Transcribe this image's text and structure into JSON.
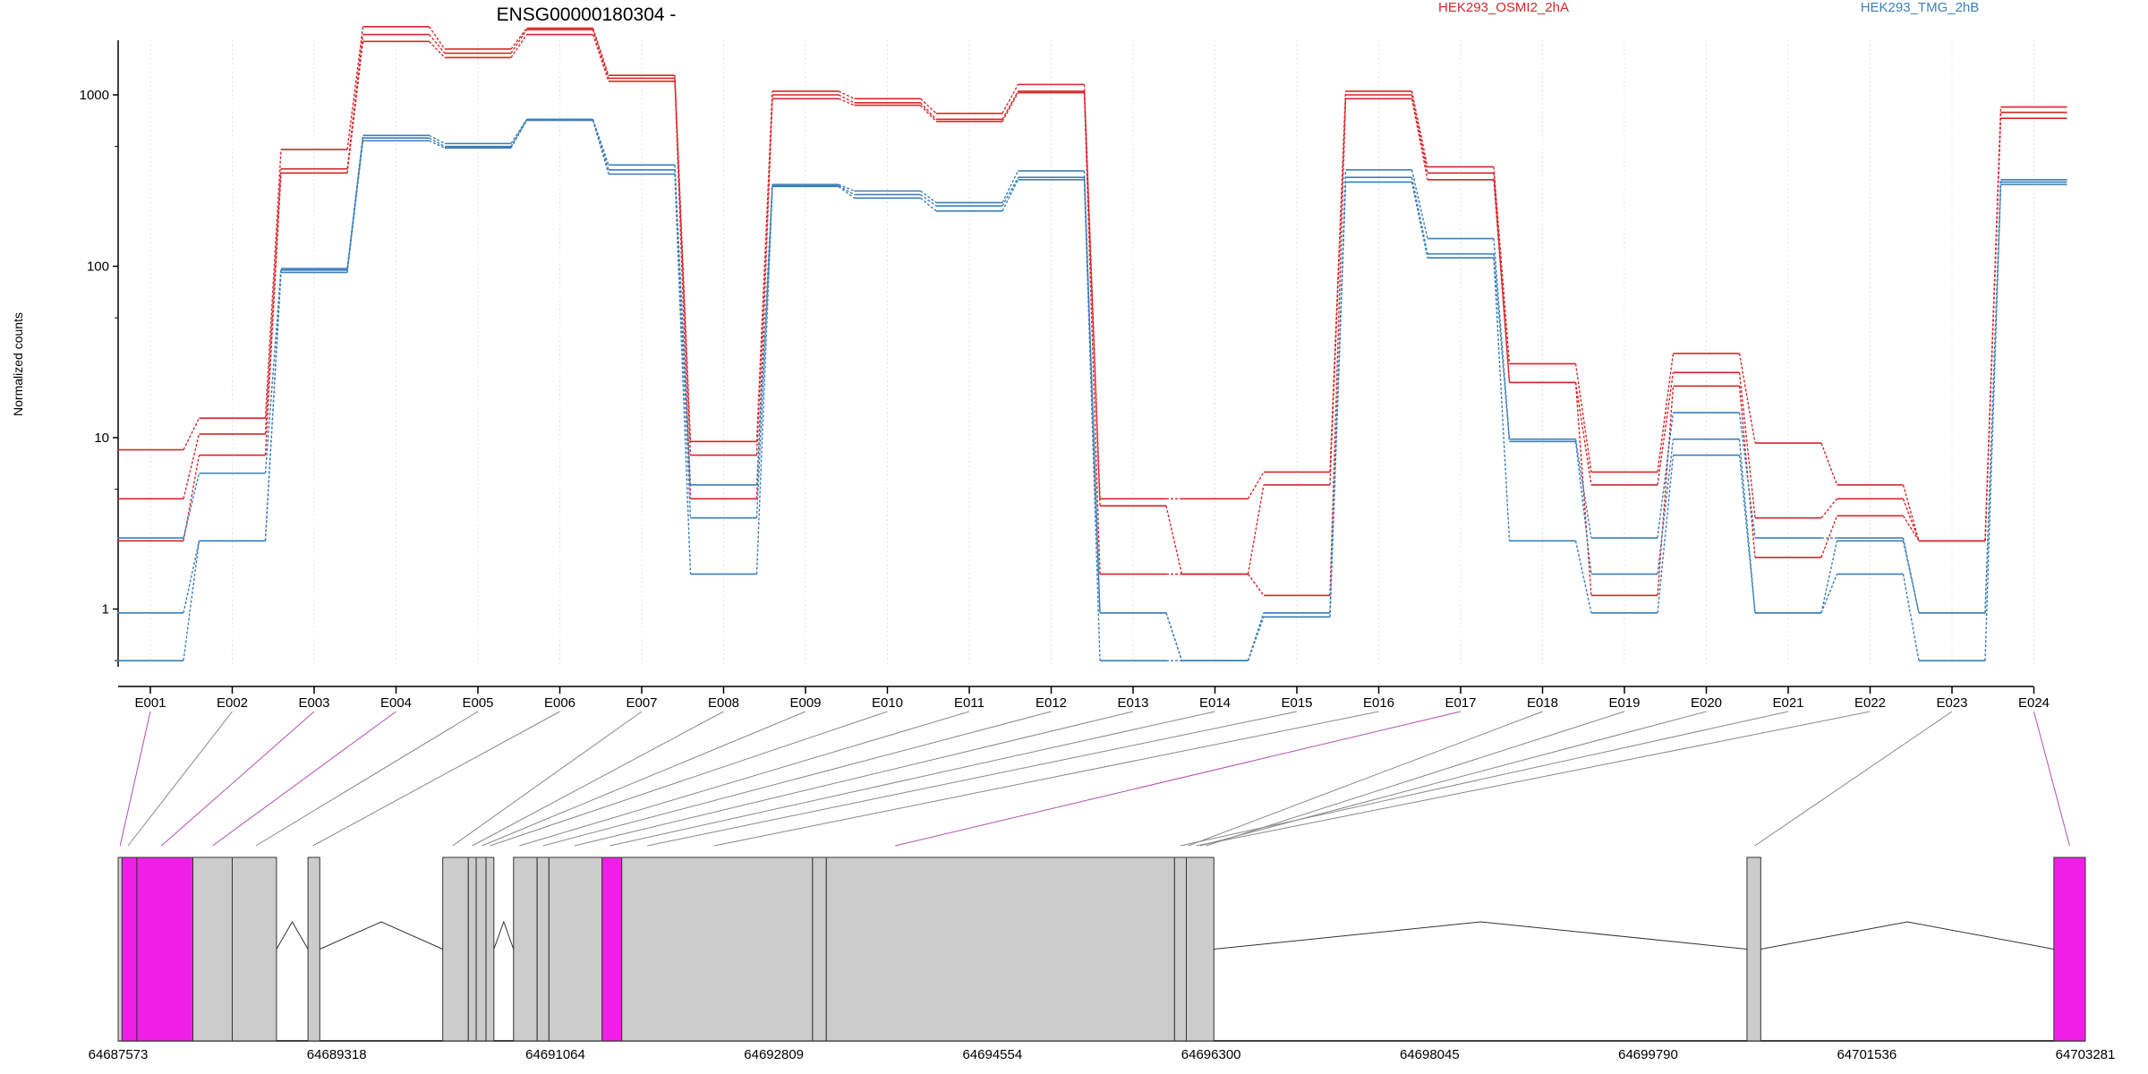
{
  "chart_data": {
    "type": "line",
    "title": "ENSG00000180304 -",
    "ylabel": "Normalized counts",
    "y_scale": "log",
    "ylim": [
      0.5,
      3200
    ],
    "y_ticks": [
      1,
      10,
      100,
      1000
    ],
    "y_tick_labels": [
      "1",
      "10",
      "100",
      "1000"
    ],
    "categories": [
      "E001",
      "E002",
      "E003",
      "E004",
      "E005",
      "E006",
      "E007",
      "E008",
      "E009",
      "E010",
      "E011",
      "E012",
      "E013",
      "E014",
      "E015",
      "E016",
      "E017",
      "E018",
      "E019",
      "E020",
      "E021",
      "E022",
      "E023",
      "E024"
    ],
    "groups": [
      {
        "name": "HEK293_OSMI2_2hA",
        "color": "#d7262b"
      },
      {
        "name": "HEK293_TMG_2hB",
        "color": "#3b7fb8"
      }
    ],
    "series": [
      {
        "group": 0,
        "values": [
          8.5,
          13,
          480,
          2500,
          1850,
          2450,
          1300,
          9.5,
          1050,
          950,
          780,
          1150,
          4.4,
          4.4,
          6.3,
          1050,
          380,
          27,
          6.3,
          31,
          9.3,
          5.3,
          2.5,
          850
        ]
      },
      {
        "group": 0,
        "values": [
          4.4,
          10.5,
          370,
          2250,
          1750,
          2400,
          1250,
          7.9,
          1000,
          900,
          720,
          1050,
          4.0,
          1.6,
          5.3,
          1000,
          350,
          21,
          5.3,
          24,
          3.4,
          4.4,
          2.5,
          790
        ]
      },
      {
        "group": 0,
        "values": [
          2.5,
          7.9,
          350,
          2050,
          1650,
          2250,
          1200,
          4.4,
          950,
          870,
          700,
          1030,
          1.6,
          1.6,
          1.2,
          950,
          320,
          21,
          1.2,
          20,
          2.0,
          3.5,
          2.5,
          730
        ]
      },
      {
        "group": 1,
        "values": [
          2.6,
          6.2,
          97,
          580,
          520,
          720,
          390,
          5.3,
          300,
          275,
          235,
          360,
          0.95,
          0.5,
          0.95,
          365,
          145,
          9.8,
          2.6,
          14,
          2.6,
          2.6,
          0.95,
          320
        ]
      },
      {
        "group": 1,
        "values": [
          0.95,
          2.5,
          95,
          560,
          500,
          715,
          365,
          3.4,
          295,
          262,
          225,
          330,
          0.95,
          0.5,
          0.95,
          330,
          118,
          9.5,
          1.6,
          9.8,
          0.95,
          2.5,
          0.95,
          310
        ]
      },
      {
        "group": 1,
        "values": [
          0.5,
          2.5,
          92,
          540,
          490,
          710,
          345,
          1.6,
          292,
          250,
          210,
          320,
          0.5,
          0.5,
          0.9,
          310,
          112,
          2.5,
          0.95,
          7.9,
          0.95,
          1.6,
          0.5,
          300
        ]
      }
    ],
    "gene_model": {
      "axis_labels": [
        "64687573",
        "64689318",
        "64691064",
        "64692809",
        "64694554",
        "64696300",
        "64698045",
        "64699790",
        "64701536",
        "64703281"
      ],
      "axis_start": 64687573,
      "axis_end": 64703281,
      "highlight_color": "#f01fe8",
      "exon_color": "#cccccc",
      "highlighted_exons": [
        "E001",
        "E003",
        "E004",
        "E017",
        "E024"
      ]
    }
  }
}
